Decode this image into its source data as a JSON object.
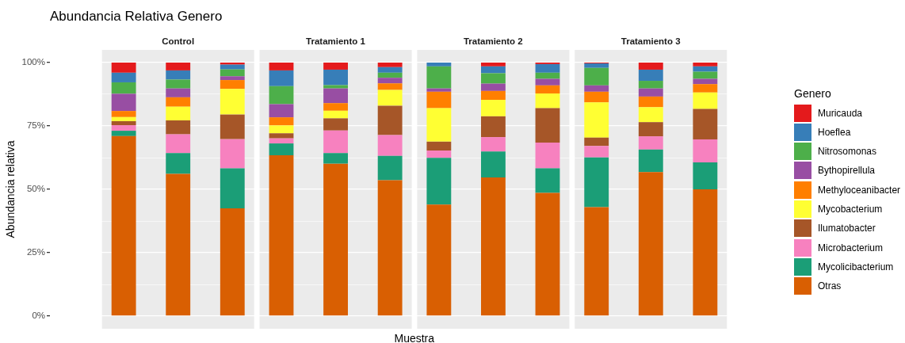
{
  "chart_data": {
    "type": "bar",
    "title": "Abundancia Relativa Genero",
    "xlabel": "Muestra",
    "ylabel": "Abundancia relativa",
    "legend": "right",
    "legend_title": "Genero",
    "annotations": [
      "Control",
      "Tratamiento 1",
      "Tratamiento 2",
      "Tratamiento 3"
    ],
    "categories": [
      null,
      null,
      null,
      null,
      null,
      null,
      null,
      null,
      null,
      null,
      null,
      null
    ],
    "stacked": true,
    "tick_labels": "y",
    "grid": "y",
    "ylim": [
      -5,
      105
    ],
    "yticks": [
      {
        "value": 0,
        "label": "0%"
      },
      {
        "value": 12.5,
        "label": null
      },
      {
        "value": 25,
        "label": "25%"
      },
      {
        "value": 37.5,
        "label": null
      },
      {
        "value": 50,
        "label": "50%"
      },
      {
        "value": 62.5,
        "label": null
      },
      {
        "value": 75,
        "label": "75%"
      },
      {
        "value": 87.5,
        "label": null
      },
      {
        "value": 100,
        "label": "100%"
      }
    ],
    "series": [
      {
        "name": "Otras",
        "color": "#d95f02",
        "values": [
          71.0,
          56.1,
          42.5,
          63.4,
          60.1,
          53.6,
          44.0,
          54.7,
          48.6,
          43.0,
          56.8,
          50.0
        ]
      },
      {
        "name": "Mycolicibacterium",
        "color": "#1b9e77",
        "values": [
          2.1,
          8.2,
          15.8,
          4.7,
          4.2,
          9.6,
          18.4,
          10.2,
          9.7,
          19.6,
          8.9,
          10.6
        ]
      },
      {
        "name": "Microbacterium",
        "color": "#f781bf",
        "values": [
          2.2,
          7.4,
          11.5,
          2.0,
          8.9,
          8.2,
          2.9,
          5.7,
          10.1,
          4.5,
          5.2,
          9.1
        ]
      },
      {
        "name": "Ilumatobacter",
        "color": "#a65628",
        "values": [
          1.6,
          5.5,
          9.7,
          2.0,
          4.8,
          11.6,
          3.5,
          8.2,
          13.6,
          3.3,
          5.6,
          12.0
        ]
      },
      {
        "name": "Mycobacterium",
        "color": "#ffff33",
        "values": [
          1.6,
          5.4,
          10.1,
          3.1,
          3.0,
          6.2,
          13.2,
          6.5,
          5.8,
          13.9,
          5.9,
          6.5
        ]
      },
      {
        "name": "Methyloceanibacter",
        "color": "#ff7f00",
        "values": [
          2.4,
          3.7,
          3.5,
          3.2,
          3.0,
          2.6,
          6.5,
          3.5,
          3.2,
          4.2,
          4.2,
          3.3
        ]
      },
      {
        "name": "Bythopirellula",
        "color": "#984ea3",
        "values": [
          6.8,
          3.5,
          1.5,
          5.2,
          5.8,
          2.2,
          1.3,
          2.9,
          2.6,
          2.5,
          3.2,
          2.1
        ]
      },
      {
        "name": "Nitrosomonas",
        "color": "#4daf4a",
        "values": [
          4.5,
          3.5,
          2.7,
          7.1,
          1.3,
          2.0,
          8.7,
          4.1,
          2.4,
          6.9,
          3.0,
          2.8
        ]
      },
      {
        "name": "Hoeflea",
        "color": "#377eb8",
        "values": [
          3.8,
          3.6,
          1.9,
          6.2,
          6.1,
          2.2,
          1.5,
          2.7,
          3.4,
          1.8,
          4.4,
          2.1
        ]
      },
      {
        "name": "Muricauda",
        "color": "#e41a1c",
        "values": [
          4.0,
          3.1,
          0.8,
          3.1,
          2.8,
          1.8,
          0,
          1.5,
          0.6,
          0.3,
          2.8,
          1.5
        ]
      }
    ]
  }
}
